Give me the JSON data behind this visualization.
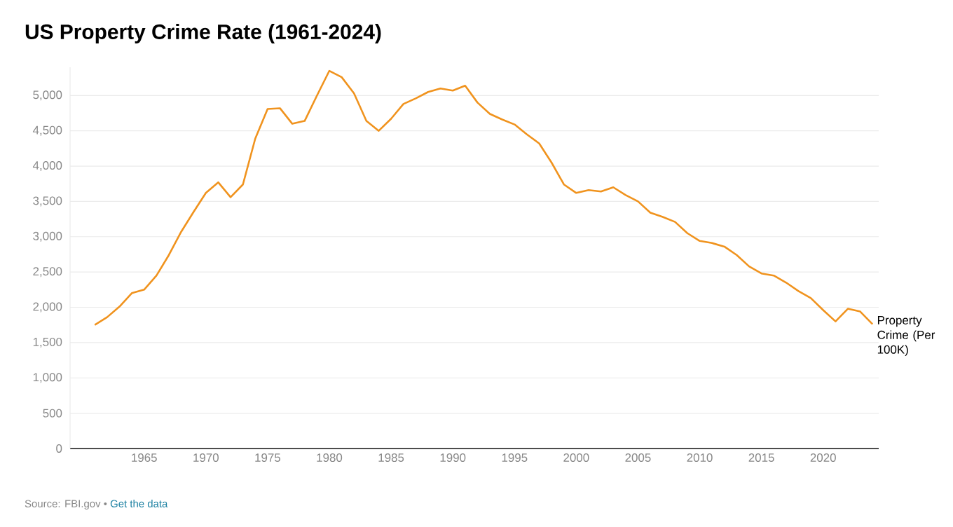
{
  "chart_data": {
    "type": "line",
    "title": "US Property Crime Rate (1961-2024)",
    "annotations": [
      "Source: FBI.gov •",
      "Get the data"
    ],
    "x": [
      1961,
      1962,
      1963,
      1964,
      1965,
      1966,
      1967,
      1968,
      1969,
      1970,
      1971,
      1972,
      1973,
      1974,
      1975,
      1976,
      1977,
      1978,
      1979,
      1980,
      1981,
      1982,
      1983,
      1984,
      1985,
      1986,
      1987,
      1988,
      1989,
      1990,
      1991,
      1992,
      1993,
      1994,
      1995,
      1996,
      1997,
      1998,
      1999,
      2000,
      2001,
      2002,
      2003,
      2004,
      2005,
      2006,
      2007,
      2008,
      2009,
      2010,
      2011,
      2012,
      2013,
      2014,
      2015,
      2016,
      2017,
      2018,
      2019,
      2020,
      2021,
      2022,
      2023,
      2024
    ],
    "series": [
      {
        "name": "Property Crime (Per 100K)",
        "color": "#f0931e",
        "values": [
          1750,
          1860,
          2010,
          2200,
          2250,
          2450,
          2740,
          3070,
          3350,
          3620,
          3770,
          3560,
          3740,
          4390,
          4810,
          4820,
          4600,
          4640,
          5000,
          5350,
          5260,
          5030,
          4640,
          4500,
          4670,
          4880,
          4960,
          5050,
          5100,
          5070,
          5140,
          4900,
          4740,
          4660,
          4590,
          4450,
          4320,
          4050,
          3740,
          3620,
          3660,
          3640,
          3700,
          3590,
          3500,
          3340,
          3280,
          3210,
          3050,
          2940,
          2910,
          2860,
          2740,
          2580,
          2480,
          2450,
          2350,
          2230,
          2130,
          1960,
          1800,
          1980,
          1940,
          1760
        ]
      }
    ],
    "xlim": [
      1959,
      2024.5
    ],
    "ylim": [
      0,
      5400
    ],
    "xticks": [
      1965,
      1970,
      1975,
      1980,
      1985,
      1990,
      1995,
      2000,
      2005,
      2010,
      2015,
      2020
    ],
    "yticks": [
      0,
      {
        "value": 500,
        "label": "500"
      },
      {
        "value": 1000,
        "label": "1,000"
      },
      {
        "value": 1500,
        "label": "1,500"
      },
      {
        "value": 2000,
        "label": "2,000"
      },
      {
        "value": 2500,
        "label": "2,500"
      },
      {
        "value": 3000,
        "label": "3,000"
      },
      {
        "value": 3500,
        "label": "3,500"
      },
      {
        "value": 4000,
        "label": "4,000"
      },
      {
        "value": 4500,
        "label": "4,500"
      },
      {
        "value": 5000,
        "label": "5,000"
      }
    ],
    "grid": "y",
    "legend": false,
    "marker": "none",
    "line_style": "solid"
  }
}
